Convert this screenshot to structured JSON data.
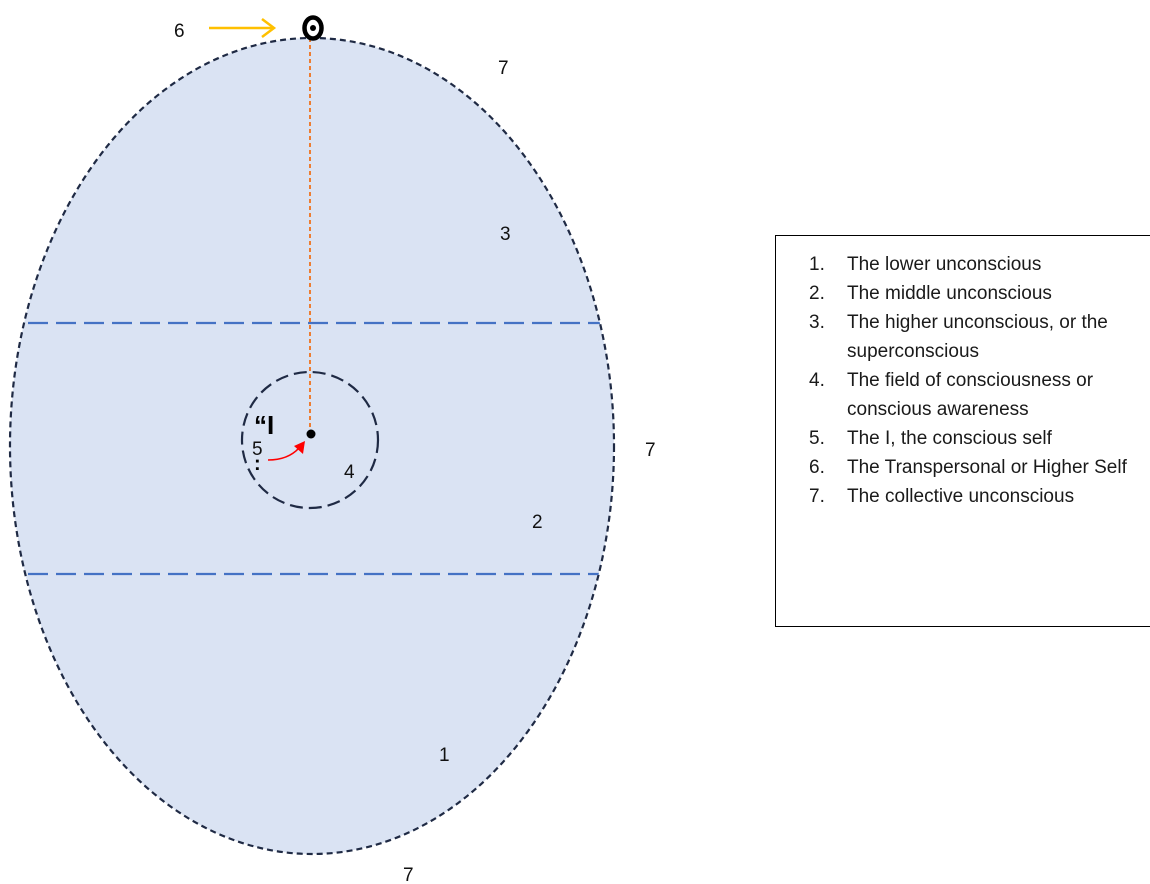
{
  "diagram": {
    "labels": {
      "lower": "1",
      "middle": "2",
      "higher": "3",
      "field": "4",
      "self": "5",
      "transpersonal": "6",
      "collective_top": "7",
      "collective_right": "7",
      "collective_bottom": "7"
    },
    "i_mark": "“I",
    "i_mark_tail": ":",
    "colors": {
      "egg_fill": "#dae3f3",
      "egg_outline": "#1f2a44",
      "band_lines": "#4472c4",
      "connector": "#ed7d31",
      "arrow_yellow": "#ffc000",
      "arrow_red": "#ff0000",
      "higher_self_symbol": "#000000"
    },
    "icons": {
      "higher_self": "circled-dot-icon",
      "indicator": "arrow-right-icon",
      "self_pointer": "curved-arrow-icon"
    }
  },
  "legend": {
    "items": [
      {
        "num": "1.",
        "text": "The lower unconscious"
      },
      {
        "num": "2.",
        "text": "The middle unconscious"
      },
      {
        "num": "3.",
        "text": "The higher unconscious, or the superconscious"
      },
      {
        "num": "4.",
        "text": "The field of consciousness or conscious awareness"
      },
      {
        "num": "5.",
        "text": "The I, the conscious self"
      },
      {
        "num": "6.",
        "text": "The Transpersonal or Higher Self"
      },
      {
        "num": "7.",
        "text": "The collective unconscious"
      }
    ]
  }
}
